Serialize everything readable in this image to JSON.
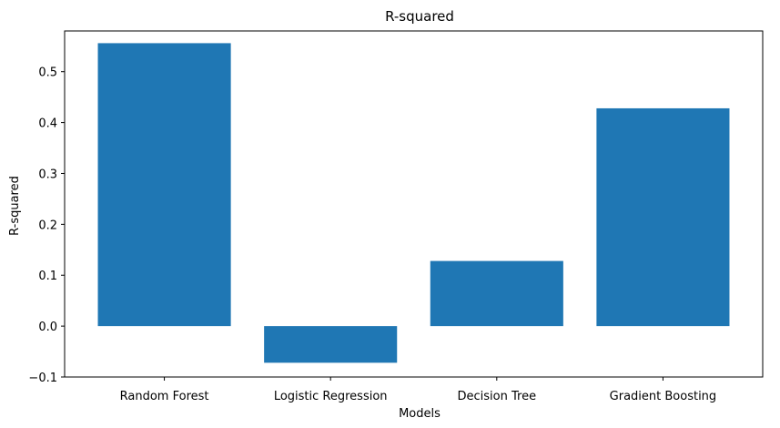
{
  "chart_data": {
    "type": "bar",
    "title": "R-squared",
    "xlabel": "Models",
    "ylabel": "R-squared",
    "categories": [
      "Random Forest",
      "Logistic Regression",
      "Decision Tree",
      "Gradient Boosting"
    ],
    "values": [
      0.556,
      -0.072,
      0.128,
      0.428
    ],
    "ylim": [
      -0.1,
      0.58
    ],
    "yticks": [
      -0.1,
      0.0,
      0.1,
      0.2,
      0.3,
      0.4,
      0.5
    ],
    "ytick_labels": [
      "−0.1",
      "0.0",
      "0.1",
      "0.2",
      "0.3",
      "0.4",
      "0.5"
    ],
    "bar_color": "#1f77b4",
    "grid": false
  }
}
